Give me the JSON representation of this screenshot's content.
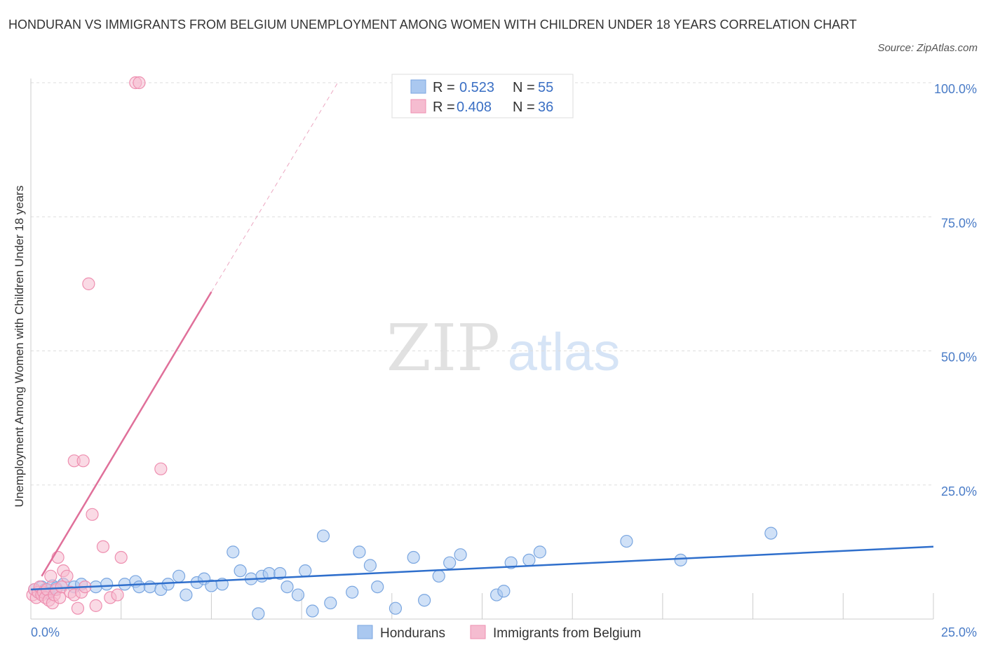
{
  "title": "HONDURAN VS IMMIGRANTS FROM BELGIUM UNEMPLOYMENT AMONG WOMEN WITH CHILDREN UNDER 18 YEARS CORRELATION CHART",
  "source": "Source: ZipAtlas.com",
  "watermark": {
    "zip": "ZIP",
    "atlas": "atlas"
  },
  "colors": {
    "blue_fill": "#aac8f0",
    "blue_stroke": "#7aa6e0",
    "blue_line": "#2f6fcc",
    "pink_fill": "#f5bcd0",
    "pink_stroke": "#ee8fb0",
    "pink_line": "#e0709a",
    "tick": "#4a7cc7",
    "grid": "#dddddd"
  },
  "legend": {
    "r_label": "R =",
    "n_label": "N =",
    "series": [
      {
        "r": "0.523",
        "n": "55"
      },
      {
        "r": "0.408",
        "n": "36"
      }
    ]
  },
  "chart_data": {
    "type": "scatter",
    "title": "HONDURAN VS IMMIGRANTS FROM BELGIUM UNEMPLOYMENT AMONG WOMEN WITH CHILDREN UNDER 18 YEARS CORRELATION CHART",
    "xlabel": "",
    "ylabel": "Unemployment Among Women with Children Under 18 years",
    "xlim": [
      0,
      25
    ],
    "ylim": [
      0,
      100
    ],
    "x_tick_labels": [
      "0.0%",
      "25.0%"
    ],
    "y_ticks": [
      25,
      50,
      75,
      100
    ],
    "y_tick_labels": [
      "25.0%",
      "50.0%",
      "75.0%",
      "100.0%"
    ],
    "grid": true,
    "legend_position": "top-center",
    "series": [
      {
        "name": "Hondurans",
        "r": 0.523,
        "n": 55,
        "points": [
          [
            0.1,
            5.5
          ],
          [
            0.2,
            5.0
          ],
          [
            0.3,
            6.0
          ],
          [
            0.4,
            5.5
          ],
          [
            0.5,
            4.8
          ],
          [
            0.6,
            6.2
          ],
          [
            0.7,
            5.8
          ],
          [
            0.9,
            6.5
          ],
          [
            1.2,
            6.0
          ],
          [
            1.4,
            6.5
          ],
          [
            1.8,
            6.0
          ],
          [
            2.1,
            6.5
          ],
          [
            2.6,
            6.5
          ],
          [
            2.9,
            7.0
          ],
          [
            3.0,
            6.0
          ],
          [
            3.3,
            6.0
          ],
          [
            3.6,
            5.5
          ],
          [
            3.8,
            6.5
          ],
          [
            4.1,
            8.0
          ],
          [
            4.3,
            4.5
          ],
          [
            4.6,
            6.8
          ],
          [
            4.8,
            7.5
          ],
          [
            5.0,
            6.2
          ],
          [
            5.3,
            6.5
          ],
          [
            5.6,
            12.5
          ],
          [
            5.8,
            9.0
          ],
          [
            6.1,
            7.5
          ],
          [
            6.3,
            1.0
          ],
          [
            6.4,
            8.0
          ],
          [
            6.6,
            8.5
          ],
          [
            6.9,
            8.5
          ],
          [
            7.1,
            6.0
          ],
          [
            7.4,
            4.5
          ],
          [
            7.6,
            9.0
          ],
          [
            7.8,
            1.5
          ],
          [
            8.1,
            15.5
          ],
          [
            8.3,
            3.0
          ],
          [
            8.9,
            5.0
          ],
          [
            9.1,
            12.5
          ],
          [
            9.4,
            10.0
          ],
          [
            9.6,
            6.0
          ],
          [
            10.1,
            2.0
          ],
          [
            10.6,
            11.5
          ],
          [
            10.9,
            3.5
          ],
          [
            11.3,
            8.0
          ],
          [
            11.6,
            10.5
          ],
          [
            11.9,
            12.0
          ],
          [
            12.9,
            4.5
          ],
          [
            13.1,
            5.2
          ],
          [
            13.3,
            10.5
          ],
          [
            13.8,
            11.0
          ],
          [
            14.1,
            12.5
          ],
          [
            16.5,
            14.5
          ],
          [
            18.0,
            11.0
          ],
          [
            20.5,
            16.0
          ]
        ],
        "trend": {
          "x": [
            0,
            25
          ],
          "y": [
            5.5,
            13.5
          ],
          "dashed_extension": false
        }
      },
      {
        "name": "Immigrants from Belgium",
        "r": 0.408,
        "n": 36,
        "points": [
          [
            0.05,
            4.5
          ],
          [
            0.1,
            5.5
          ],
          [
            0.15,
            4.0
          ],
          [
            0.2,
            5.0
          ],
          [
            0.25,
            6.0
          ],
          [
            0.3,
            4.5
          ],
          [
            0.35,
            5.0
          ],
          [
            0.4,
            4.0
          ],
          [
            0.45,
            5.5
          ],
          [
            0.5,
            3.5
          ],
          [
            0.55,
            8.0
          ],
          [
            0.6,
            3.0
          ],
          [
            0.65,
            4.5
          ],
          [
            0.7,
            5.5
          ],
          [
            0.75,
            11.5
          ],
          [
            0.8,
            4.0
          ],
          [
            0.85,
            6.0
          ],
          [
            0.9,
            9.0
          ],
          [
            1.0,
            8.0
          ],
          [
            1.1,
            5.0
          ],
          [
            1.2,
            4.5
          ],
          [
            1.3,
            2.0
          ],
          [
            1.4,
            5.0
          ],
          [
            1.5,
            6.0
          ],
          [
            1.6,
            62.5
          ],
          [
            1.7,
            19.5
          ],
          [
            1.8,
            2.5
          ],
          [
            2.0,
            13.5
          ],
          [
            2.2,
            4.0
          ],
          [
            2.5,
            11.5
          ],
          [
            2.9,
            100.0
          ],
          [
            3.0,
            100.0
          ],
          [
            2.4,
            4.5
          ],
          [
            1.2,
            29.5
          ],
          [
            1.45,
            29.5
          ],
          [
            3.6,
            28.0
          ]
        ],
        "trend": {
          "x": [
            0.3,
            5.0
          ],
          "y": [
            8.0,
            61.0
          ],
          "dashed_x": [
            5.0,
            8.5
          ],
          "dashed_y": [
            61.0,
            100.0
          ]
        }
      }
    ]
  },
  "bottom_legend": [
    {
      "label": "Hondurans"
    },
    {
      "label": "Immigrants from Belgium"
    }
  ]
}
